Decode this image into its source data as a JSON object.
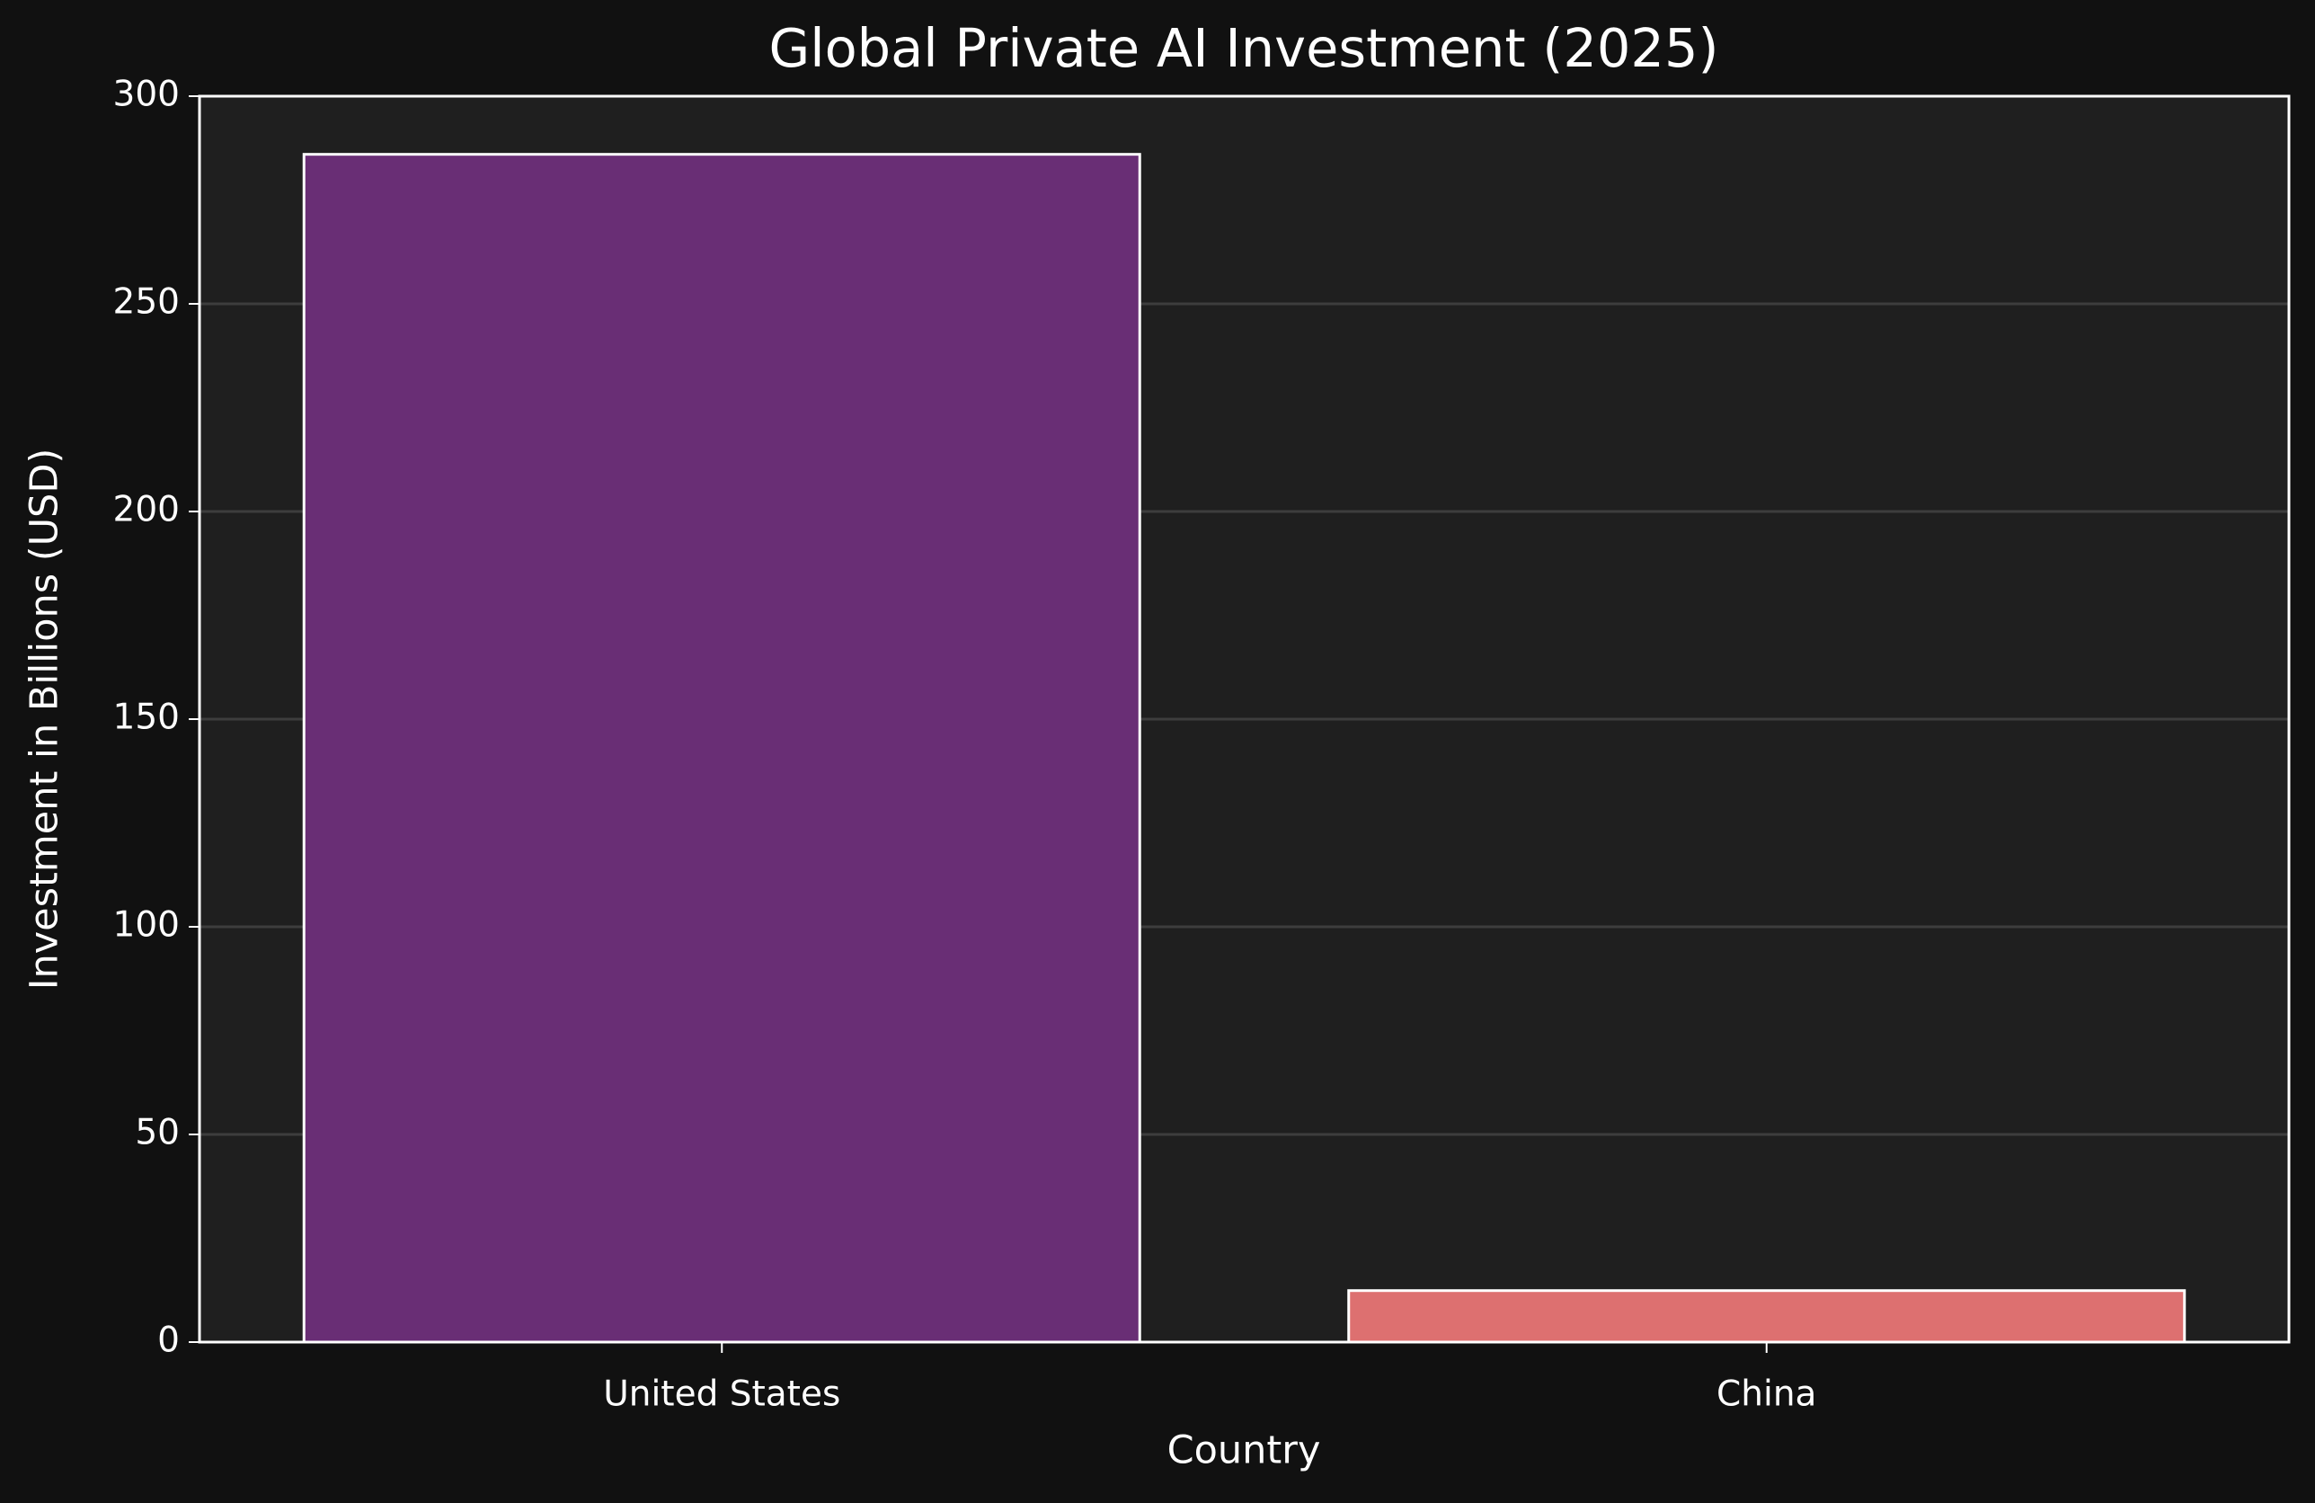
{
  "chart_data": {
    "type": "bar",
    "title": "Global Private AI Investment (2025)",
    "x_label": "Country",
    "y_label": "Investment in Billions (USD)",
    "categories": [
      "United States",
      "China"
    ],
    "values": [
      286,
      12.4
    ],
    "colors": [
      "#692e75",
      "#dd7070"
    ],
    "ylim": [
      0,
      300
    ],
    "yticks": [
      0,
      50,
      100,
      150,
      200,
      250,
      300
    ],
    "grid": true
  }
}
